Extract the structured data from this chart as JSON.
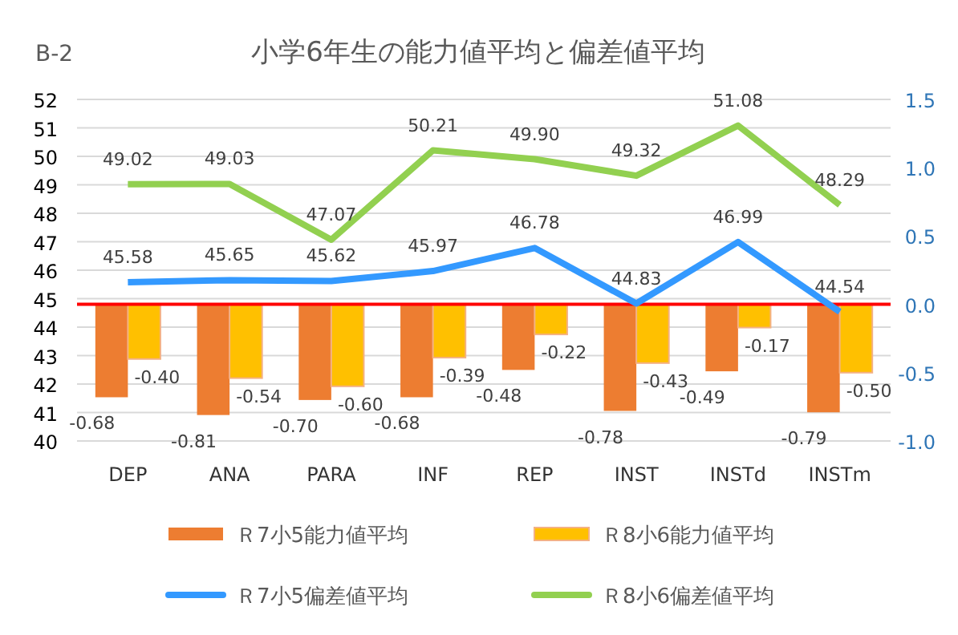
{
  "chart_data": {
    "type": "bar",
    "title": "小学6年生の能力値平均と偏差値平均",
    "annotations": [
      "B-2"
    ],
    "categories": [
      "DEP",
      "ANA",
      "PARA",
      "INF",
      "REP",
      "INST",
      "INSTd",
      "INSTm"
    ],
    "series": [
      {
        "name": "Ｒ7小5能力値平均",
        "axis": "y2",
        "color": "#ed7d31",
        "values": [
          -0.68,
          -0.81,
          -0.7,
          -0.68,
          -0.48,
          -0.78,
          -0.49,
          -0.79
        ],
        "value_labels": [
          "-0.68",
          "-0.81",
          "-0.70",
          "-0.68",
          "-0.48",
          "-0.78",
          "-0.49",
          "-0.79"
        ]
      },
      {
        "name": "Ｒ8小6能力値平均",
        "axis": "y2",
        "color": "#ffc000",
        "values": [
          -0.4,
          -0.54,
          -0.6,
          -0.39,
          -0.22,
          -0.43,
          -0.17,
          -0.5
        ],
        "value_labels": [
          "-0.40",
          "-0.54",
          "-0.60",
          "-0.39",
          "-0.22",
          "-0.43",
          "-0.17",
          "-0.50"
        ]
      },
      {
        "name": "Ｒ7小5偏差値平均",
        "type": "line",
        "color": "#3399ff",
        "values": [
          45.58,
          45.65,
          45.62,
          45.97,
          46.78,
          44.83,
          46.99,
          44.54
        ],
        "value_labels": [
          "45.58",
          "45.65",
          "45.62",
          "45.97",
          "46.78",
          "44.83",
          "46.99",
          "44.54"
        ]
      },
      {
        "name": "Ｒ8小6偏差値平均",
        "type": "line",
        "color": "#92d050",
        "values": [
          49.02,
          49.03,
          47.07,
          50.21,
          49.9,
          49.32,
          51.08,
          48.29
        ],
        "value_labels": [
          "49.02",
          "49.03",
          "47.07",
          "50.21",
          "49.90",
          "49.32",
          "51.08",
          "48.29"
        ]
      }
    ],
    "ylim": [
      40,
      52
    ],
    "yticks": [
      40,
      41,
      42,
      43,
      44,
      45,
      46,
      47,
      48,
      49,
      50,
      51,
      52
    ],
    "y2lim": [
      -1.0,
      1.5
    ],
    "y2ticks": [
      {
        "value": -1.0,
        "label": "-1.0"
      },
      {
        "value": -0.5,
        "label": "-0.5"
      },
      {
        "value": 0,
        "label": "0.0"
      },
      {
        "value": 0.5,
        "label": "0.5"
      },
      {
        "value": 1.0,
        "label": "1.0"
      },
      {
        "value": 1.5,
        "label": "1.5"
      }
    ],
    "ref_lines": [
      {
        "axis": "y2",
        "value": 0,
        "color": "#ff0000"
      }
    ],
    "grid": "y",
    "legend": "bottom",
    "line_style": "solid",
    "marker": "none"
  }
}
